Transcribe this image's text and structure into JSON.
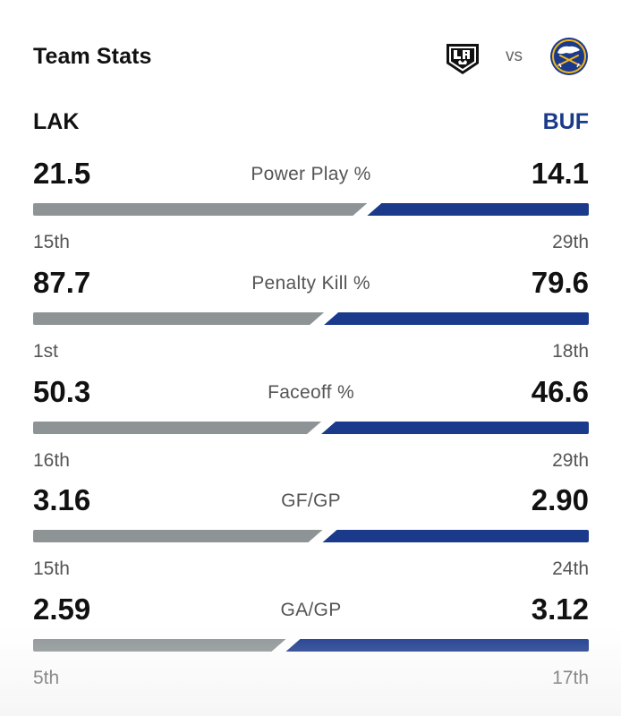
{
  "header": {
    "title": "Team Stats",
    "vs_label": "vs",
    "home_logo_icon": "la-kings-logo-icon",
    "away_logo_icon": "buffalo-sabres-logo-icon"
  },
  "teams": {
    "home": "LAK",
    "away": "BUF"
  },
  "colors": {
    "home_bar": "#8e9496",
    "away_bar": "#1b3a8c",
    "away_text": "#1a3a8a"
  },
  "stats": [
    {
      "label": "Power Play %",
      "home_value": "21.5",
      "away_value": "14.1",
      "home_rank": "15th",
      "away_rank": "29th"
    },
    {
      "label": "Penalty Kill %",
      "home_value": "87.7",
      "away_value": "79.6",
      "home_rank": "1st",
      "away_rank": "18th"
    },
    {
      "label": "Faceoff %",
      "home_value": "50.3",
      "away_value": "46.6",
      "home_rank": "16th",
      "away_rank": "29th"
    },
    {
      "label": "GF/GP",
      "home_value": "3.16",
      "away_value": "2.90",
      "home_rank": "15th",
      "away_rank": "24th"
    },
    {
      "label": "GA/GP",
      "home_value": "2.59",
      "away_value": "3.12",
      "home_rank": "5th",
      "away_rank": "17th"
    }
  ]
}
